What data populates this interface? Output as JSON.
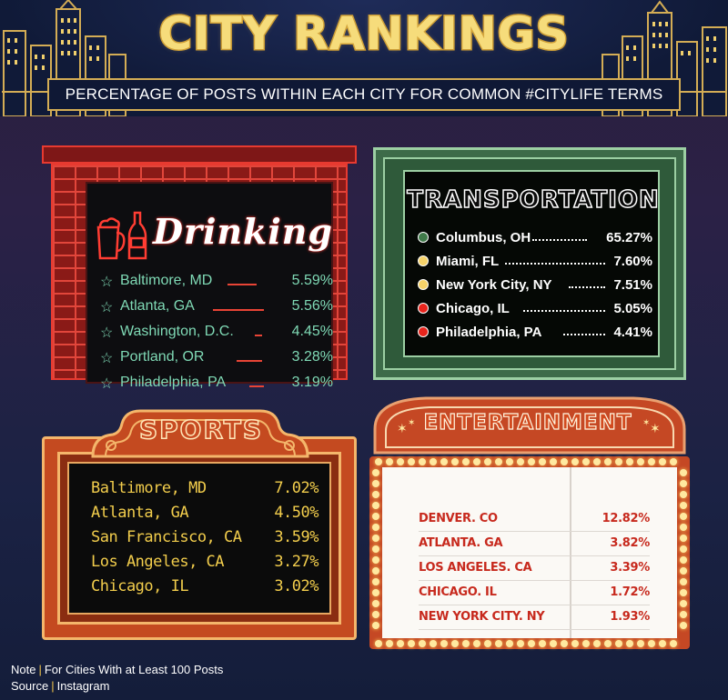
{
  "header": {
    "title": "CITY RANKINGS",
    "subtitle": "PERCENTAGE OF POSTS WITHIN EACH CITY FOR COMMON #CITYLIFE TERMS"
  },
  "drinking": {
    "title": "Drinking",
    "rows": [
      {
        "city": "Baltimore, MD",
        "pct": "5.59%"
      },
      {
        "city": "Atlanta, GA",
        "pct": "5.56%"
      },
      {
        "city": "Washington, D.C.",
        "pct": "4.45%"
      },
      {
        "city": "Portland, OR",
        "pct": "3.28%"
      },
      {
        "city": "Philadelphia, PA",
        "pct": "3.19%"
      }
    ],
    "colors": {
      "accent": "#e73a30",
      "text": "#7fd9b5"
    }
  },
  "transportation": {
    "title": "TRANSPORTATION",
    "rows": [
      {
        "city": "Columbus, OH",
        "pct": "65.27%",
        "dot_color": "#3f7a49"
      },
      {
        "city": "Miami, FL",
        "pct": "7.60%",
        "dot_color": "#f6d36a"
      },
      {
        "city": "New York City, NY",
        "pct": "7.51%",
        "dot_color": "#f6d36a"
      },
      {
        "city": "Chicago, IL",
        "pct": "5.05%",
        "dot_color": "#e8241c"
      },
      {
        "city": "Philadelphia, PA",
        "pct": "4.41%",
        "dot_color": "#e8241c"
      }
    ]
  },
  "sports": {
    "title": "SPORTS",
    "rows": [
      {
        "city": "Baltimore, MD",
        "pct": "7.02%"
      },
      {
        "city": "Atlanta, GA",
        "pct": "4.50%"
      },
      {
        "city": "San Francisco, CA",
        "pct": "3.59%"
      },
      {
        "city": "Los Angeles, CA",
        "pct": "3.27%"
      },
      {
        "city": "Chicago, IL",
        "pct": "3.02%"
      }
    ]
  },
  "entertainment": {
    "title": "ENTERTAINMENT",
    "rows": [
      {
        "city": "DENVER. CO",
        "pct": "12.82%"
      },
      {
        "city": "ATLANTA. GA",
        "pct": "3.82%"
      },
      {
        "city": "LOS ANGELES. CA",
        "pct": "3.39%"
      },
      {
        "city": "CHICAGO. IL",
        "pct": "1.72%"
      },
      {
        "city": "NEW YORK CITY. NY",
        "pct": "1.93%"
      }
    ]
  },
  "footnote": {
    "note_label": "Note",
    "note_text": "For Cities With at Least 100 Posts",
    "source_label": "Source",
    "source_text": "Instagram"
  }
}
